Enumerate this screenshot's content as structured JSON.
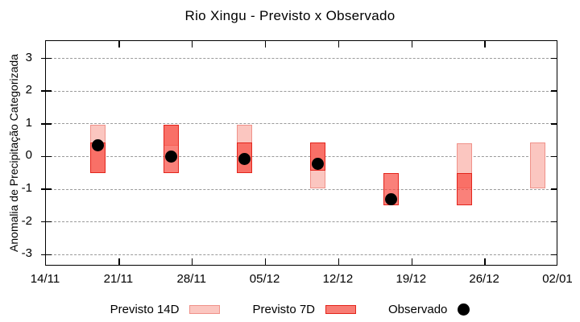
{
  "title": "Rio Xingu - Previsto x Observado",
  "colors": {
    "fill_14d": "#fbc6c0",
    "border_14d": "#f0928a",
    "fill_7d": "rgba(248,76,65,0.70)",
    "fill_7d_legend": "#f87c74",
    "border_7d": "#e3251c",
    "observado": "#000000",
    "grid": "#9a9a9a",
    "axis": "#000000"
  },
  "chart_data": {
    "type": "range-bar",
    "title": "Rio Xingu - Previsto x Observado",
    "ylabel": "Anomalia de Precipitação Categorizada",
    "xlabel": "",
    "ylim": [
      -3.36,
      3.53
    ],
    "yticks": [
      3,
      2,
      1,
      0,
      -1,
      -2,
      -3
    ],
    "grid": "dashed horizontal at each integer y",
    "x_axis": {
      "tick_labels": [
        "14/11",
        "21/11",
        "28/11",
        "05/12",
        "12/12",
        "19/12",
        "26/12",
        "02/01"
      ],
      "span_days": 49,
      "tick_interval_days": 7
    },
    "bars": [
      {
        "date": "19/11",
        "day_offset": 5,
        "previsto_14d": [
          -0.5,
          0.97
        ],
        "previsto_7d": [
          -0.5,
          0.43
        ],
        "observado": 0.35
      },
      {
        "date": "26/11",
        "day_offset": 12,
        "previsto_14d": [
          0.34,
          0.97
        ],
        "previsto_7d": [
          -0.5,
          0.97
        ],
        "observado": 0.0
      },
      {
        "date": "03/12",
        "day_offset": 19,
        "previsto_14d": [
          -0.5,
          0.97
        ],
        "previsto_7d": [
          -0.5,
          0.43
        ],
        "observado": -0.07
      },
      {
        "date": "10/12",
        "day_offset": 26,
        "previsto_14d": [
          -0.97,
          0.43
        ],
        "previsto_7d": [
          -0.43,
          0.43
        ],
        "observado": -0.22
      },
      {
        "date": "17/12",
        "day_offset": 33,
        "previsto_14d": null,
        "previsto_7d": [
          -1.5,
          -0.5
        ],
        "observado": -1.3
      },
      {
        "date": "24/12",
        "day_offset": 40,
        "previsto_14d": [
          -0.97,
          0.4
        ],
        "previsto_7d": [
          -1.5,
          -0.5
        ],
        "observado": null
      },
      {
        "date": "31/12",
        "day_offset": 47,
        "previsto_14d": [
          -0.97,
          0.43
        ],
        "previsto_7d": null,
        "observado": null
      }
    ],
    "legend_position": "bottom center",
    "legend": [
      {
        "label": "Previsto 14D",
        "swatch": "range-14d"
      },
      {
        "label": "Previsto 7D",
        "swatch": "range-7d"
      },
      {
        "label": "Observado",
        "swatch": "dot"
      }
    ]
  }
}
